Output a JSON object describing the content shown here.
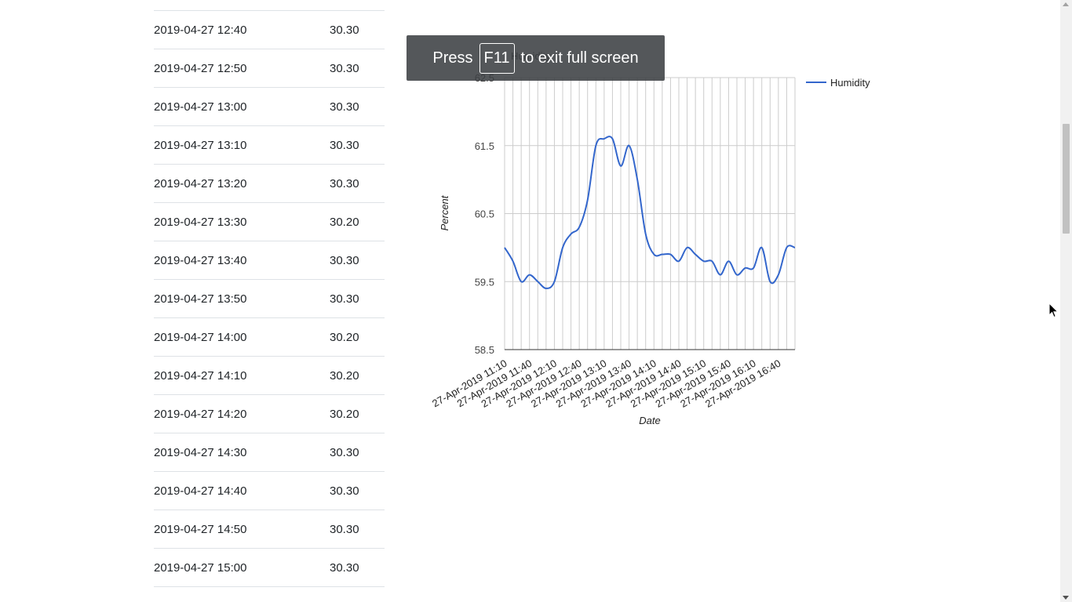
{
  "table": {
    "rows": [
      {
        "date": "2019-04-27 12:40",
        "value": "30.30"
      },
      {
        "date": "2019-04-27 12:50",
        "value": "30.30"
      },
      {
        "date": "2019-04-27 13:00",
        "value": "30.30"
      },
      {
        "date": "2019-04-27 13:10",
        "value": "30.30"
      },
      {
        "date": "2019-04-27 13:20",
        "value": "30.30"
      },
      {
        "date": "2019-04-27 13:30",
        "value": "30.20"
      },
      {
        "date": "2019-04-27 13:40",
        "value": "30.30"
      },
      {
        "date": "2019-04-27 13:50",
        "value": "30.30"
      },
      {
        "date": "2019-04-27 14:00",
        "value": "30.20"
      },
      {
        "date": "2019-04-27 14:10",
        "value": "30.20"
      },
      {
        "date": "2019-04-27 14:20",
        "value": "30.20"
      },
      {
        "date": "2019-04-27 14:30",
        "value": "30.30"
      },
      {
        "date": "2019-04-27 14:40",
        "value": "30.30"
      },
      {
        "date": "2019-04-27 14:50",
        "value": "30.30"
      },
      {
        "date": "2019-04-27 15:00",
        "value": "30.30"
      }
    ]
  },
  "fullscreen_notice": {
    "before": "Press",
    "key": "F11",
    "after": "to exit full screen"
  },
  "chart_data": {
    "type": "line",
    "title": "Humidity",
    "xlabel": "Date",
    "ylabel": "Percent",
    "ylim": [
      58.5,
      62.5
    ],
    "yticks": [
      "62.5",
      "61.5",
      "60.5",
      "59.5",
      "58.5"
    ],
    "xticks": [
      "27-Apr-2019 11:10",
      "27-Apr-2019 11:40",
      "27-Apr-2019 12:10",
      "27-Apr-2019 12:40",
      "27-Apr-2019 13:10",
      "27-Apr-2019 13:40",
      "27-Apr-2019 14:10",
      "27-Apr-2019 14:40",
      "27-Apr-2019 15:10",
      "27-Apr-2019 15:40",
      "27-Apr-2019 16:10",
      "27-Apr-2019 16:40"
    ],
    "x": [
      "11:10",
      "11:20",
      "11:30",
      "11:40",
      "11:50",
      "12:00",
      "12:10",
      "12:20",
      "12:30",
      "12:40",
      "12:50",
      "13:00",
      "13:10",
      "13:20",
      "13:30",
      "13:40",
      "13:50",
      "14:00",
      "14:10",
      "14:20",
      "14:30",
      "14:40",
      "14:50",
      "15:00",
      "15:10",
      "15:20",
      "15:30",
      "15:40",
      "15:50",
      "16:00",
      "16:10",
      "16:20",
      "16:30",
      "16:40",
      "16:50",
      "17:00"
    ],
    "series": [
      {
        "name": "Humidity",
        "color": "#3366cc",
        "values": [
          60.0,
          59.8,
          59.5,
          59.6,
          59.5,
          59.4,
          59.5,
          60.0,
          60.2,
          60.3,
          60.7,
          61.5,
          61.6,
          61.6,
          61.2,
          61.5,
          61.0,
          60.2,
          59.9,
          59.9,
          59.9,
          59.8,
          60.0,
          59.9,
          59.8,
          59.8,
          59.6,
          59.8,
          59.6,
          59.7,
          59.7,
          60.0,
          59.5,
          59.6,
          60.0,
          60.0
        ]
      }
    ],
    "legend": "right",
    "grid": true
  }
}
